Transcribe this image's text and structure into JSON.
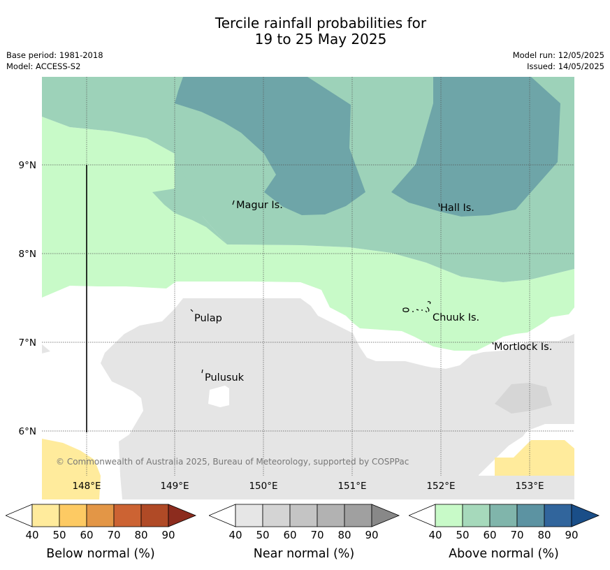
{
  "title": {
    "line1": "Tercile rainfall probabilities for",
    "line2": "19 to 25 May 2025"
  },
  "meta": {
    "base_period": "Base period: 1981-2018",
    "model": "Model: ACCESS-S2",
    "model_run": "Model run: 12/05/2025",
    "issued": "Issued: 14/05/2025"
  },
  "map": {
    "lon_ticks": [
      "148°E",
      "149°E",
      "150°E",
      "151°E",
      "152°E",
      "153°E"
    ],
    "lat_ticks": [
      "9°N",
      "8°N",
      "7°N",
      "6°N"
    ],
    "places": {
      "magur": "Magur Is.",
      "hall": "Hall Is.",
      "pulap": "Pulap",
      "chuuk": "Chuuk Is.",
      "pulusuk": "Pulusuk",
      "mortlock": "Mortlock Is."
    },
    "copyright": "© Commonwealth of Australia 2025, Bureau of Meteorology, supported by COSPPac",
    "colors": {
      "above_40": "#c8fac8",
      "above_50": "#9dd2b9",
      "above_60": "#6ea5a8",
      "near_40": "#e5e5e5",
      "near_50": "#d6d6d6",
      "below_40": "#ffeb9c"
    }
  },
  "colorbars": [
    {
      "label": "Below normal (%)",
      "ticks": [
        "40",
        "50",
        "60",
        "70",
        "80",
        "90"
      ],
      "colors": [
        "#ffeb9c",
        "#fdca63",
        "#e39646",
        "#cc6333",
        "#b04a26",
        "#8c2c1e"
      ]
    },
    {
      "label": "Near normal (%)",
      "ticks": [
        "40",
        "50",
        "60",
        "70",
        "80",
        "90"
      ],
      "colors": [
        "#e6e6e6",
        "#d4d4d4",
        "#c4c4c4",
        "#b2b2b2",
        "#a0a0a0",
        "#888888"
      ]
    },
    {
      "label": "Above normal (%)",
      "ticks": [
        "40",
        "50",
        "60",
        "70",
        "80",
        "90"
      ],
      "colors": [
        "#c8fac8",
        "#a6d9bb",
        "#80b5ab",
        "#5c93a2",
        "#31659c",
        "#1a4e88"
      ]
    }
  ]
}
